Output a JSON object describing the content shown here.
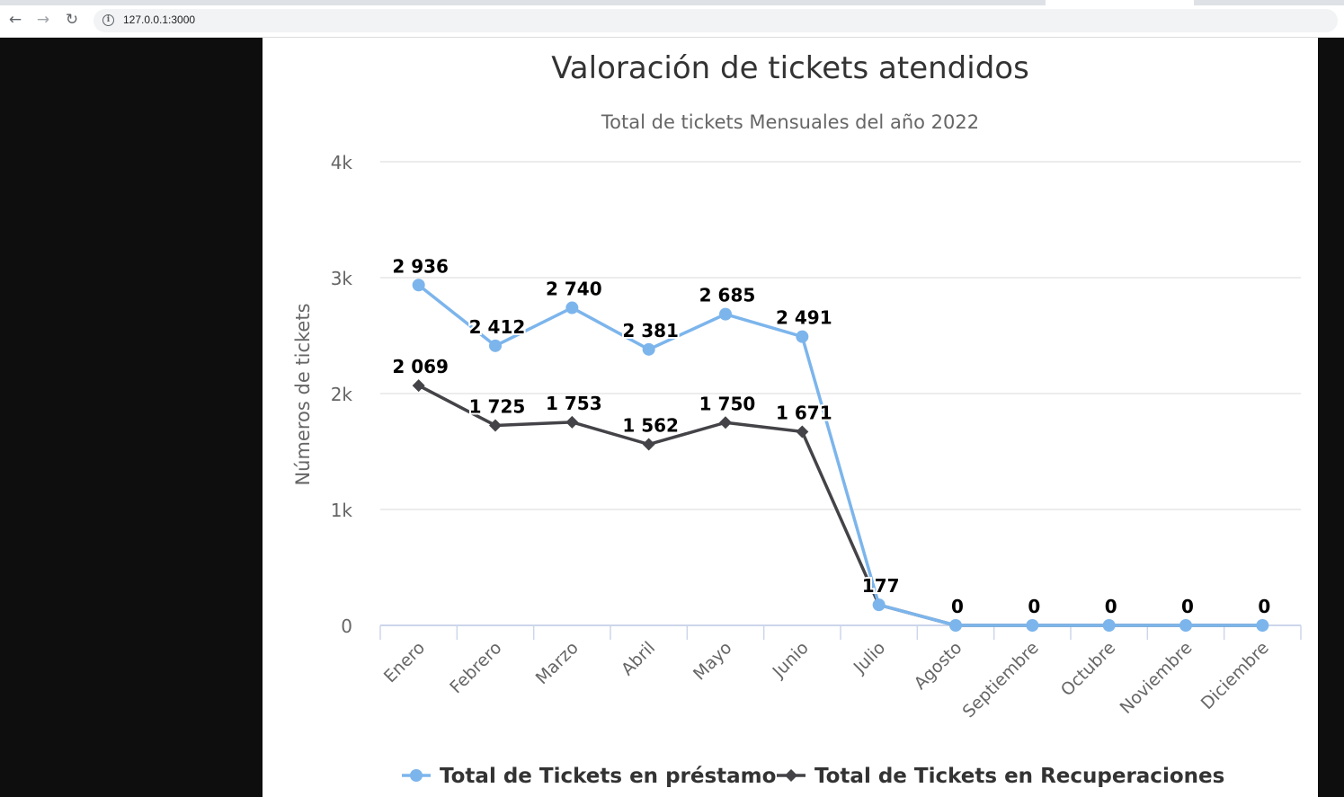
{
  "browser": {
    "url": "127.0.0.1:3000",
    "back_icon": "arrow-left-icon",
    "forward_icon": "arrow-right-icon",
    "reload_icon": "reload-icon",
    "info_icon": "info-icon"
  },
  "chart_data": {
    "type": "line",
    "title": "Valoración de tickets atendidos",
    "subtitle": "Total de tickets Mensuales del año 2022",
    "ylabel": "Números de tickets",
    "xlabel": "",
    "ylim": [
      0,
      4000
    ],
    "yticks": [
      0,
      1000,
      2000,
      3000,
      4000
    ],
    "ytick_labels": [
      "0",
      "1k",
      "2k",
      "3k",
      "4k"
    ],
    "grid": true,
    "legend_position": "bottom",
    "categories": [
      "Enero",
      "Febrero",
      "Marzo",
      "Abril",
      "Mayo",
      "Junio",
      "Julio",
      "Agosto",
      "Septiembre",
      "Octubre",
      "Noviembre",
      "Diciembre"
    ],
    "series": [
      {
        "name": "Total de Tickets en préstamo",
        "color": "#7cb5ec",
        "marker": "circle",
        "values": [
          2936,
          2412,
          2740,
          2381,
          2685,
          2491,
          177,
          0,
          0,
          0,
          0,
          0
        ],
        "value_labels": [
          "2 936",
          "2 412",
          "2 740",
          "2 381",
          "2 685",
          "2 491",
          "177",
          "0",
          "0",
          "0",
          "0",
          "0"
        ]
      },
      {
        "name": "Total de Tickets en Recuperaciones",
        "color": "#434348",
        "marker": "diamond",
        "values": [
          2069,
          1725,
          1753,
          1562,
          1750,
          1671,
          177,
          0,
          0,
          0,
          0,
          0
        ],
        "value_labels": [
          "2 069",
          "1 725",
          "1 753",
          "1 562",
          "1 750",
          "1 671",
          "",
          "",
          "",
          "",
          "",
          ""
        ]
      }
    ]
  }
}
